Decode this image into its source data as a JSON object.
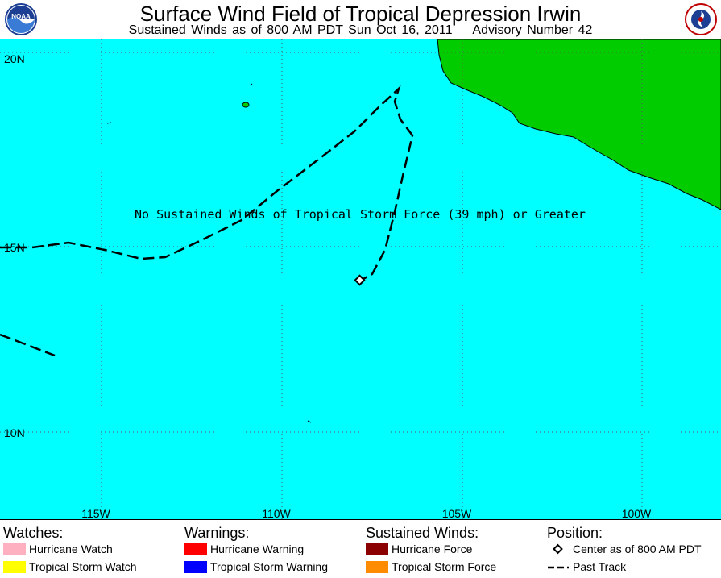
{
  "header": {
    "title": "Surface Wind Field of Tropical Depression Irwin",
    "subtitle": "Sustained Winds as of 800 AM PDT Sun Oct 16, 2011    Advisory Number 42",
    "left_logo": "NOAA",
    "right_logo": "National Weather Service"
  },
  "map": {
    "annotation": "No Sustained Winds of Tropical Storm Force (39 mph) or Greater",
    "lat_labels": [
      "20N",
      "15N",
      "10N"
    ],
    "lon_labels": [
      "115W",
      "110W",
      "105W",
      "100W"
    ],
    "colors": {
      "ocean": "#00ffff",
      "land": "#00cc00",
      "grid": "#555555",
      "track": "#000000"
    },
    "storm_center": {
      "lat": 14.0,
      "lon": -107.6
    }
  },
  "legend": {
    "watches": {
      "heading": "Watches:",
      "items": [
        {
          "label": "Hurricane Watch",
          "color": "#ffb0c0"
        },
        {
          "label": "Tropical Storm Watch",
          "color": "#ffff00"
        }
      ]
    },
    "warnings": {
      "heading": "Warnings:",
      "items": [
        {
          "label": "Hurricane Warning",
          "color": "#ff0000"
        },
        {
          "label": "Tropical Storm Warning",
          "color": "#0000ff"
        }
      ]
    },
    "winds": {
      "heading": "Sustained Winds:",
      "items": [
        {
          "label": "Hurricane Force",
          "color": "#8b0000"
        },
        {
          "label": "Tropical Storm Force",
          "color": "#ff8c00"
        }
      ]
    },
    "position": {
      "heading": "Position:",
      "items": [
        {
          "label": "Center as of 800 AM PDT",
          "icon": "diamond-icon"
        },
        {
          "label": "Past Track",
          "icon": "dashed-line-icon"
        }
      ]
    }
  }
}
